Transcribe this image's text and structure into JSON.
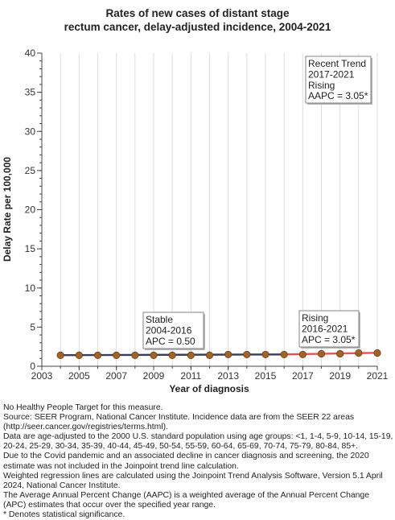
{
  "title_lines": [
    "Rates of new cases of distant stage",
    "rectum cancer, delay-adjusted incidence, 2004-2021"
  ],
  "chart_data": {
    "type": "line",
    "title": "Rates of new cases of distant stage rectum cancer, delay-adjusted incidence, 2004-2021",
    "xlabel": "Year of diagnosis",
    "ylabel": "Delay Rate per 100,000",
    "xlim": [
      2003,
      2021
    ],
    "ylim": [
      0,
      40
    ],
    "x_ticks": [
      2003,
      2005,
      2007,
      2009,
      2011,
      2013,
      2015,
      2017,
      2019,
      2021
    ],
    "y_ticks": [
      0,
      5,
      10,
      15,
      20,
      25,
      30,
      35,
      40
    ],
    "grid": "vertical",
    "observed": {
      "x": [
        2004,
        2005,
        2006,
        2007,
        2008,
        2009,
        2010,
        2011,
        2012,
        2013,
        2014,
        2015,
        2016,
        2017,
        2018,
        2019,
        2020,
        2021
      ],
      "y": [
        1.4,
        1.4,
        1.4,
        1.4,
        1.4,
        1.4,
        1.4,
        1.4,
        1.4,
        1.5,
        1.5,
        1.5,
        1.5,
        1.5,
        1.6,
        1.6,
        1.7,
        1.7
      ]
    },
    "trend_segments": [
      {
        "x": [
          2004,
          2016
        ],
        "y": [
          1.42,
          1.51
        ],
        "color": "#3a3f55"
      },
      {
        "x": [
          2016,
          2021
        ],
        "y": [
          1.51,
          1.72
        ],
        "color": "#e8524f"
      }
    ],
    "annotations": [
      {
        "lines": [
          "Stable",
          "2004-2016",
          "APC =  0.50"
        ],
        "position": "above-middle-left"
      },
      {
        "lines": [
          "Rising",
          "2016-2021",
          "APC =  3.05*"
        ],
        "position": "above-bottom-right"
      },
      {
        "lines": [
          "Recent Trend",
          "2017-2021",
          "Rising",
          "AAPC =  3.05*"
        ],
        "position": "top-right"
      }
    ],
    "colors": {
      "marker_fill": "#a0642a",
      "marker_edge": "#6b3f13",
      "grid": "#dddddd"
    }
  },
  "footnotes": [
    "No Healthy People Target for this measure.",
    "Source: SEER Program, National Cancer Institute. Incidence data are from the SEER 22 areas (http://seer.cancer.gov/registries/terms.html).",
    "Data are age-adjusted to the 2000 U.S. standard population using age groups: <1, 1-4, 5-9, 10-14, 15-19, 20-24, 25-29, 30-34, 35-39, 40-44, 45-49, 50-54, 55-59, 60-64, 65-69, 70-74, 75-79, 80-84, 85+.",
    "Due to the Covid pandemic and an associated decline in cancer diagnosis and screening, the 2020 estimate was not included in the Joinpoint trend line calculation.",
    "Weighted regression lines are calculated using the Joinpoint Trend Analysis Software, Version 5.1 April 2024, National Cancer Institute.",
    "The Average Annual Percent Change (AAPC) is a weighted average of the Annual Percent Change (APC) estimates that occur over the specified year range.",
    "* Denotes statistical significance."
  ]
}
